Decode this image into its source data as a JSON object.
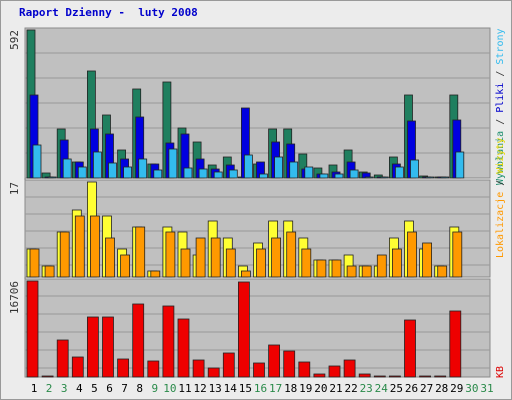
{
  "title": "Raport Dzienny -  luty 2008",
  "colors": {
    "visits": "#1f7f5f",
    "pages": "#0000e0",
    "hits": "#33bbee",
    "unique": "#ffff33",
    "sessions": "#ff9900",
    "traffic": "#ee0000",
    "weekday_label": "#000000",
    "weekend_label": "#2a8a4a"
  },
  "panels": [
    {
      "id": "top",
      "max_label": "592",
      "legend": [
        {
          "text": "Wywołania",
          "color": "#1f8f6f"
        },
        {
          "text": " / ",
          "color": "#333333"
        },
        {
          "text": "Pliki",
          "color": "#0000cc"
        },
        {
          "text": " / ",
          "color": "#333333"
        },
        {
          "text": "Strony",
          "color": "#33bbee"
        }
      ]
    },
    {
      "id": "mid",
      "max_label": "17",
      "legend": [
        {
          "text": "Lokalizacje",
          "color": "#ff9900"
        },
        {
          "text": " / ",
          "color": "#333333"
        },
        {
          "text": "Wizyty",
          "color": "#e6d800"
        }
      ]
    },
    {
      "id": "bot",
      "max_label": "16706",
      "legend": [
        {
          "text": "KB",
          "color": "#dd0000"
        }
      ]
    }
  ],
  "chart_data": {
    "type": "bar",
    "title": "Raport Dzienny -  luty 2008",
    "categories": [
      "1",
      "2",
      "3",
      "4",
      "5",
      "6",
      "7",
      "8",
      "9",
      "10",
      "11",
      "12",
      "13",
      "14",
      "15",
      "16",
      "17",
      "18",
      "19",
      "20",
      "21",
      "22",
      "23",
      "24",
      "25",
      "26",
      "27",
      "28",
      "29",
      "30",
      "31"
    ],
    "weekend_days": [
      "2",
      "3",
      "9",
      "10",
      "16",
      "17",
      "23",
      "24",
      "30",
      "31"
    ],
    "top_panel": {
      "max": 592,
      "series": [
        {
          "name": "Wywołania",
          "values": [
            592,
            18,
            195,
            65,
            428,
            250,
            112,
            355,
            55,
            385,
            200,
            145,
            50,
            85,
            0,
            55,
            195,
            195,
            95,
            40,
            50,
            110,
            25,
            10,
            85,
            330,
            8,
            5,
            330,
            null,
            null
          ]
        },
        {
          "name": "Pliki",
          "values": [
            332,
            0,
            150,
            65,
            195,
            175,
            75,
            245,
            55,
            140,
            175,
            75,
            35,
            50,
            278,
            65,
            145,
            135,
            35,
            15,
            25,
            65,
            20,
            5,
            55,
            230,
            5,
            5,
            232,
            null,
            null
          ]
        },
        {
          "name": "Strony",
          "values": [
            132,
            0,
            75,
            45,
            105,
            60,
            45,
            75,
            30,
            115,
            40,
            35,
            25,
            30,
            90,
            15,
            85,
            65,
            45,
            15,
            15,
            30,
            5,
            0,
            45,
            72,
            0,
            0,
            105,
            null,
            null
          ]
        }
      ]
    },
    "mid_panel": {
      "max": 17,
      "series": [
        {
          "name": "Wizyty",
          "values": [
            5,
            2,
            8,
            12,
            17,
            11,
            5,
            9,
            1,
            9,
            8,
            4,
            10,
            7,
            2,
            6,
            10,
            10,
            7,
            3,
            3,
            4,
            2,
            2,
            7,
            10,
            5,
            2,
            9,
            null,
            null
          ]
        },
        {
          "name": "Lokalizacje",
          "values": [
            5,
            2,
            8,
            11,
            11,
            7,
            4,
            9,
            1,
            8,
            5,
            7,
            7,
            5,
            1,
            5,
            7,
            8,
            5,
            3,
            3,
            2,
            2,
            4,
            5,
            8,
            6,
            2,
            8,
            null,
            null
          ]
        }
      ]
    },
    "bot_panel": {
      "max": 16706,
      "series": [
        {
          "name": "KB",
          "values": [
            16706,
            0,
            6500,
            3500,
            10500,
            10400,
            3100,
            12700,
            2800,
            12300,
            10100,
            3000,
            1500,
            4200,
            16600,
            2500,
            5600,
            4500,
            2600,
            600,
            2000,
            3000,
            500,
            0,
            0,
            10000,
            0,
            0,
            11400,
            null,
            null
          ]
        }
      ]
    }
  }
}
